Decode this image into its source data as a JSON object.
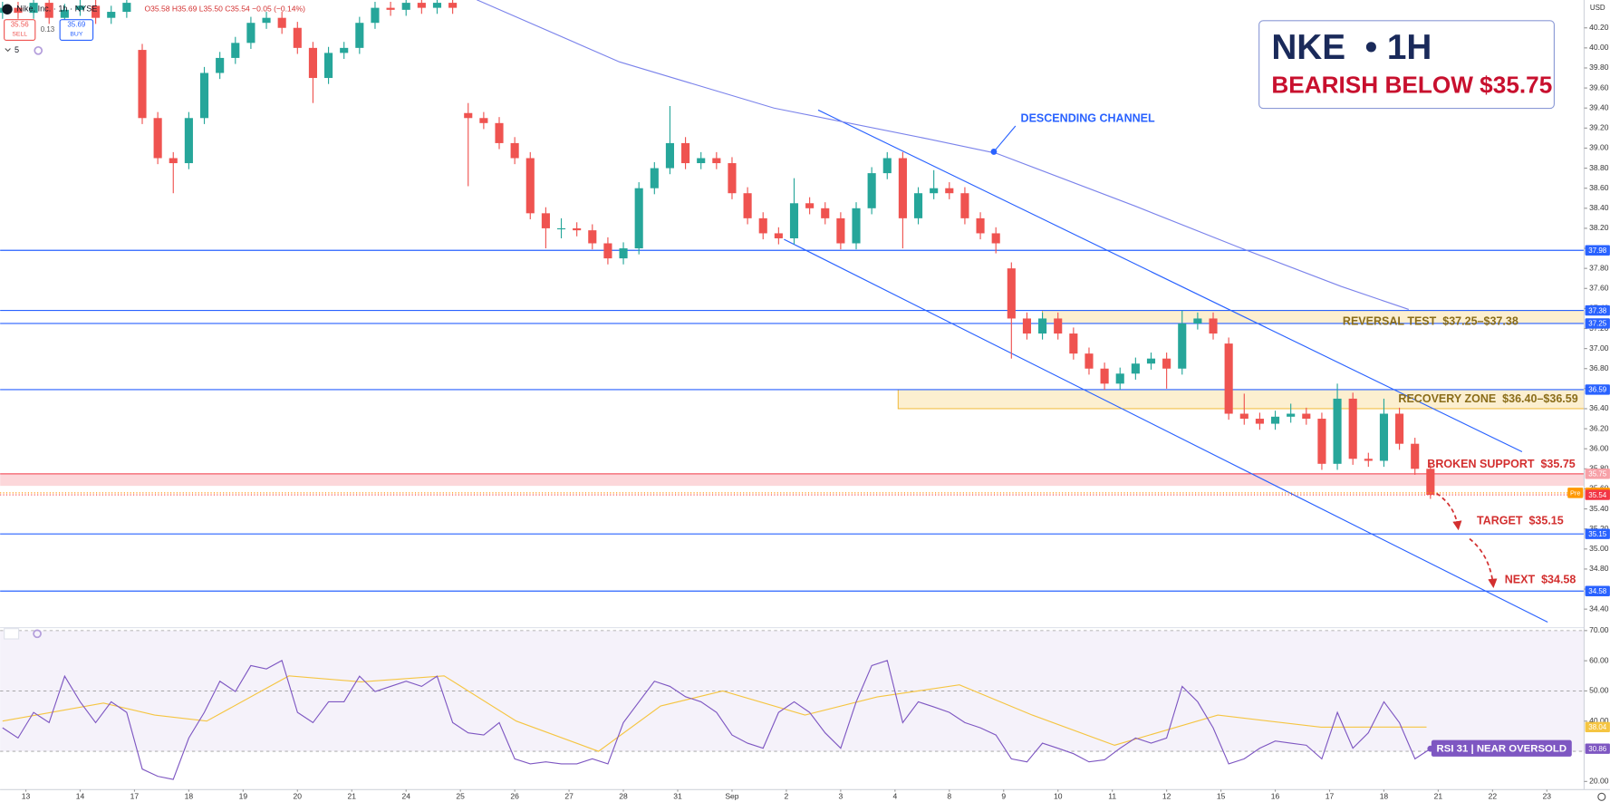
{
  "header": {
    "symbol": "Nike, Inc. · 1h · NYSE",
    "ohlc": "O35.58 H35.69 L35.50 C35.54 −0.05 (−0.14%)",
    "sell_price": "35.56",
    "sell": "SELL",
    "spread": "0.13",
    "buy_price": "35.69",
    "buy": "BUY",
    "indicators": "5",
    "currency": "USD"
  },
  "title_box": {
    "title": "NKE  • 1H",
    "subtitle": "BEARISH BELOW $35.75"
  },
  "chart_data": [
    {
      "type": "candlestick",
      "up_color": "#26a69a",
      "down_color": "#ef5350",
      "xlim": [
        -3.32,
        200.8
      ],
      "ylim": [
        34.216,
        40.478
      ],
      "yticks": [
        {
          "value": 34.4,
          "label": "34.40"
        },
        {
          "value": 34.6,
          "label": "34.60"
        },
        {
          "value": 34.8,
          "label": "34.80"
        },
        {
          "value": 35,
          "label": "35.00"
        },
        {
          "value": 35.2,
          "label": "35.20"
        },
        {
          "value": 35.4,
          "label": "35.40"
        },
        {
          "value": 35.6,
          "label": "35.60"
        },
        {
          "value": 35.8,
          "label": "35.80"
        },
        {
          "value": 36,
          "label": "36.00"
        },
        {
          "value": 36.2,
          "label": "36.20"
        },
        {
          "value": 36.4,
          "label": "36.40"
        },
        {
          "value": 36.6,
          "label": "36.60"
        },
        {
          "value": 36.8,
          "label": "36.80"
        },
        {
          "value": 37,
          "label": "37.00"
        },
        {
          "value": 37.2,
          "label": "37.20"
        },
        {
          "value": 37.4,
          "label": "37.40"
        },
        {
          "value": 37.6,
          "label": "37.60"
        },
        {
          "value": 37.8,
          "label": "37.80"
        },
        {
          "value": 38,
          "label": "38.00"
        },
        {
          "value": 38.2,
          "label": "38.20"
        },
        {
          "value": 38.4,
          "label": "38.40"
        },
        {
          "value": 38.6,
          "label": "38.60"
        },
        {
          "value": 38.8,
          "label": "38.80"
        },
        {
          "value": 39,
          "label": "39.00"
        },
        {
          "value": 39.2,
          "label": "39.20"
        },
        {
          "value": 39.4,
          "label": "39.40"
        },
        {
          "value": 39.6,
          "label": "39.60"
        },
        {
          "value": 39.8,
          "label": "39.80"
        },
        {
          "value": 40,
          "label": "40.00"
        },
        {
          "value": 40.2,
          "label": "40.20"
        }
      ],
      "x": [
        -3,
        -1,
        1,
        3,
        5,
        7,
        9,
        11,
        13,
        15,
        17,
        19,
        21,
        23,
        25,
        27,
        29,
        31,
        33,
        35,
        37,
        39,
        41,
        43,
        45,
        47,
        49,
        51,
        53,
        55,
        57,
        59,
        61,
        63,
        65,
        67,
        69,
        71,
        73,
        75,
        77,
        79,
        81,
        83,
        85,
        87,
        89,
        91,
        93,
        95,
        97,
        99,
        101,
        103,
        105,
        107,
        109,
        111,
        113,
        115,
        117,
        119,
        121,
        123,
        125,
        127,
        129,
        131,
        133,
        135,
        137,
        139,
        141,
        143,
        145,
        147,
        149,
        151,
        153,
        155,
        157,
        159,
        161,
        163,
        165,
        167,
        169,
        171,
        173,
        175,
        177,
        179,
        181
      ],
      "open": [
        40.35,
        40.4,
        40.35,
        40.45,
        40.3,
        40.38,
        40.42,
        40.3,
        40.36,
        39.98,
        39.3,
        38.9,
        38.85,
        39.3,
        39.75,
        39.9,
        40.05,
        40.25,
        40.3,
        40.2,
        40.0,
        39.7,
        39.95,
        40.0,
        40.25,
        40.4,
        40.38,
        40.45,
        40.4,
        40.45,
        39.35,
        39.3,
        39.25,
        39.05,
        38.9,
        38.35,
        38.2,
        38.2,
        38.18,
        38.05,
        37.9,
        38.0,
        38.6,
        38.8,
        39.05,
        38.85,
        38.9,
        38.85,
        38.55,
        38.3,
        38.15,
        38.1,
        38.45,
        38.4,
        38.3,
        38.05,
        38.4,
        38.75,
        38.9,
        38.3,
        38.55,
        38.6,
        38.55,
        38.3,
        38.15,
        37.8,
        37.3,
        37.15,
        37.3,
        37.15,
        36.95,
        36.8,
        36.65,
        36.75,
        36.85,
        36.9,
        36.8,
        37.25,
        37.3,
        37.05,
        36.35,
        36.3,
        36.25,
        36.32,
        36.35,
        36.3,
        35.85,
        36.5,
        35.9,
        35.88,
        36.35,
        36.05,
        35.8
      ],
      "high": [
        40.46,
        40.46,
        40.51,
        40.51,
        40.44,
        40.48,
        40.48,
        40.42,
        40.51,
        40.04,
        39.36,
        38.96,
        39.36,
        39.81,
        39.96,
        40.11,
        40.31,
        40.36,
        40.36,
        40.26,
        40.06,
        40.01,
        40.06,
        40.31,
        40.46,
        40.46,
        40.51,
        40.51,
        40.51,
        40.51,
        39.45,
        39.36,
        39.31,
        39.11,
        38.96,
        38.41,
        38.3,
        38.26,
        38.24,
        38.11,
        38.06,
        38.66,
        38.86,
        39.42,
        39.11,
        38.96,
        38.96,
        38.91,
        38.61,
        38.36,
        38.21,
        38.7,
        38.51,
        38.46,
        38.36,
        38.46,
        38.81,
        38.96,
        38.96,
        38.61,
        38.78,
        38.66,
        38.61,
        38.36,
        38.21,
        37.86,
        37.36,
        37.36,
        37.36,
        37.21,
        37.01,
        36.86,
        36.81,
        36.91,
        36.96,
        36.96,
        37.38,
        37.36,
        37.36,
        37.11,
        36.55,
        36.36,
        36.38,
        36.45,
        36.41,
        36.36,
        36.65,
        36.56,
        35.96,
        36.5,
        36.41,
        36.11,
        35.86
      ],
      "low": [
        40.29,
        40.29,
        40.29,
        40.24,
        40.24,
        40.32,
        40.24,
        40.24,
        40.3,
        39.24,
        38.84,
        38.55,
        38.79,
        39.24,
        39.69,
        39.84,
        39.99,
        40.19,
        40.14,
        39.94,
        39.45,
        39.64,
        39.89,
        39.94,
        40.19,
        40.32,
        40.32,
        40.34,
        40.34,
        40.34,
        38.62,
        39.19,
        38.99,
        38.84,
        38.29,
        38.0,
        38.1,
        38.12,
        37.99,
        37.84,
        37.84,
        37.94,
        38.54,
        38.74,
        38.79,
        38.79,
        38.79,
        38.49,
        38.24,
        38.09,
        38.04,
        38.04,
        38.34,
        38.24,
        37.99,
        37.99,
        38.34,
        38.69,
        38.0,
        38.24,
        38.49,
        38.49,
        38.24,
        38.09,
        37.95,
        36.9,
        37.09,
        37.09,
        37.09,
        36.89,
        36.74,
        36.59,
        36.59,
        36.69,
        36.79,
        36.6,
        36.74,
        37.19,
        37.09,
        36.29,
        36.24,
        36.19,
        36.19,
        36.26,
        36.24,
        35.79,
        35.79,
        35.84,
        35.82,
        35.82,
        35.99,
        35.74,
        35.5
      ],
      "close": [
        40.4,
        40.35,
        40.45,
        40.3,
        40.38,
        40.42,
        40.3,
        40.36,
        40.45,
        39.3,
        38.9,
        38.85,
        39.3,
        39.75,
        39.9,
        40.05,
        40.25,
        40.3,
        40.2,
        40.0,
        39.7,
        39.95,
        40.0,
        40.25,
        40.4,
        40.38,
        40.45,
        40.4,
        40.45,
        40.4,
        39.3,
        39.25,
        39.05,
        38.9,
        38.35,
        38.2,
        38.2,
        38.18,
        38.05,
        37.9,
        38.0,
        38.6,
        38.8,
        39.05,
        38.85,
        38.9,
        38.85,
        38.55,
        38.3,
        38.15,
        38.1,
        38.45,
        38.4,
        38.3,
        38.05,
        38.4,
        38.75,
        38.9,
        38.3,
        38.55,
        38.6,
        38.55,
        38.3,
        38.15,
        38.05,
        37.3,
        37.15,
        37.3,
        37.15,
        36.95,
        36.8,
        36.65,
        36.75,
        36.85,
        36.9,
        36.8,
        37.25,
        37.3,
        37.15,
        36.35,
        36.3,
        36.25,
        36.32,
        36.35,
        36.3,
        35.85,
        36.5,
        35.9,
        35.88,
        36.35,
        36.05,
        35.8,
        35.54
      ],
      "ma": {
        "color": "#7b83eb",
        "x": [
          58.1,
          76.5,
          96.4,
          116.4,
          125,
          143,
          156.3,
          169.5,
          178.2
        ],
        "values": [
          40.48,
          39.86,
          39.4,
          39.09,
          38.95,
          38.42,
          38.01,
          37.62,
          37.39
        ]
      },
      "channel": {
        "label": "DESCENDING CHANNEL",
        "color": "#2962ff",
        "upper": {
          "x": [
            102.1,
            192.8
          ],
          "y": [
            39.38,
            35.97
          ]
        },
        "lower": {
          "x": [
            97.7,
            196.1
          ],
          "y": [
            38.09,
            34.27
          ]
        }
      },
      "hlines": [
        37.98,
        37.38,
        37.25,
        36.59,
        35.15,
        34.58
      ],
      "hline_color": "#2962ff",
      "zones": [
        {
          "label": "REVERSAL TEST  $37.25–$37.38",
          "low": 37.25,
          "high": 37.38,
          "x_start": 131,
          "color": "#f0b429"
        },
        {
          "label": "RECOVERY ZONE  $36.40–$36.59",
          "low": 36.4,
          "high": 36.59,
          "x_start": 112.4,
          "color": "#f0b429"
        }
      ],
      "support": {
        "label": "BROKEN SUPPORT  $35.75",
        "high": 35.75,
        "low": 35.63,
        "color": "#f23645"
      },
      "last_price": 35.54,
      "last_color": "#f23645",
      "pre_price": 35.56,
      "pre_label": "Pre",
      "pre_color": "#ff9800",
      "annotations": [
        "TARGET  $35.15",
        "NEXT  $34.58"
      ]
    },
    {
      "type": "line",
      "xlim": [
        -3.32,
        200.8
      ],
      "ylim": [
        17.3,
        71
      ],
      "yticks": [
        {
          "value": 20,
          "label": "20.00"
        },
        {
          "value": 40,
          "label": "40.00"
        },
        {
          "value": 50,
          "label": "50.00"
        },
        {
          "value": 60,
          "label": "60.00"
        },
        {
          "value": 70,
          "label": "70.00"
        }
      ],
      "xticks": [
        {
          "value": 0,
          "label": "13"
        },
        {
          "value": 7,
          "label": "14"
        },
        {
          "value": 14,
          "label": "17"
        },
        {
          "value": 21,
          "label": "18"
        },
        {
          "value": 28,
          "label": "19"
        },
        {
          "value": 35,
          "label": "20"
        },
        {
          "value": 42,
          "label": "21"
        },
        {
          "value": 49,
          "label": "24"
        },
        {
          "value": 56,
          "label": "25"
        },
        {
          "value": 63,
          "label": "26"
        },
        {
          "value": 70,
          "label": "27"
        },
        {
          "value": 77,
          "label": "28"
        },
        {
          "value": 84,
          "label": "31"
        },
        {
          "value": 91,
          "label": "Sep"
        },
        {
          "value": 98,
          "label": "2"
        },
        {
          "value": 105,
          "label": "3"
        },
        {
          "value": 112,
          "label": "4"
        },
        {
          "value": 119,
          "label": "8"
        },
        {
          "value": 126,
          "label": "9"
        },
        {
          "value": 133,
          "label": "10"
        },
        {
          "value": 140,
          "label": "11"
        },
        {
          "value": 147,
          "label": "12"
        },
        {
          "value": 154,
          "label": "15"
        },
        {
          "value": 161,
          "label": "16"
        },
        {
          "value": 168,
          "label": "17"
        },
        {
          "value": 175,
          "label": "18"
        },
        {
          "value": 182,
          "label": "21"
        },
        {
          "value": 189,
          "label": "22"
        },
        {
          "value": 196,
          "label": "23"
        }
      ],
      "x": [
        -3,
        -1,
        1,
        3,
        5,
        7,
        9,
        11,
        13,
        15,
        17,
        19,
        21,
        23,
        25,
        27,
        29,
        31,
        33,
        35,
        37,
        39,
        41,
        43,
        45,
        47,
        49,
        51,
        53,
        55,
        57,
        59,
        61,
        63,
        65,
        67,
        69,
        71,
        73,
        75,
        77,
        79,
        81,
        83,
        85,
        87,
        89,
        91,
        93,
        95,
        97,
        99,
        101,
        103,
        105,
        107,
        109,
        111,
        113,
        115,
        117,
        119,
        121,
        123,
        125,
        127,
        129,
        131,
        133,
        135,
        137,
        139,
        141,
        143,
        145,
        147,
        149,
        151,
        153,
        155,
        157,
        159,
        161,
        163,
        165,
        167,
        169,
        171,
        173,
        175,
        177,
        179,
        181
      ],
      "rsi": {
        "color": "#7e57c2",
        "values": [
          37.8,
          34.4,
          42.9,
          39.5,
          54.9,
          46.4,
          39.5,
          46.4,
          42.9,
          24.1,
          21.7,
          20.7,
          34.4,
          42.9,
          53.2,
          49.8,
          58.4,
          57.3,
          60.1,
          42.9,
          39.5,
          46.4,
          46.4,
          54.9,
          49.8,
          51.5,
          53.2,
          51.5,
          54.9,
          39.5,
          36.1,
          35.4,
          39.5,
          27.5,
          25.8,
          26.5,
          25.8,
          25.8,
          27.5,
          25.8,
          39.5,
          46.4,
          53.2,
          51.5,
          48.1,
          46.4,
          42.9,
          35.4,
          32.7,
          31.0,
          42.9,
          46.4,
          42.9,
          36.1,
          31.0,
          46.4,
          58.4,
          60.1,
          39.5,
          46.4,
          44.7,
          42.9,
          39.5,
          37.8,
          35.4,
          27.5,
          26.5,
          32.7,
          31.0,
          29.2,
          26.5,
          27.2,
          31.0,
          34.4,
          32.7,
          34.4,
          51.5,
          46.4,
          37.8,
          25.8,
          27.5,
          31.0,
          33.4,
          32.7,
          32.0,
          27.5,
          42.9,
          31.0,
          36.1,
          46.4,
          39.5,
          27.5,
          30.86
        ]
      },
      "rsi_ma": {
        "color": "#f5c542",
        "x": [
          -3,
          10,
          16.6,
          23.3,
          33.9,
          43.2,
          53.9,
          63.2,
          73.8,
          81.8,
          89.8,
          100.4,
          109.7,
          120.3,
          129.7,
          140.3,
          153.6,
          166.9,
          180.5
        ],
        "values": [
          40,
          46,
          42,
          40,
          55,
          53,
          55,
          40,
          30,
          45,
          50,
          42,
          48,
          52,
          42,
          32,
          42,
          38,
          38.04
        ]
      },
      "levels": [
        30,
        50,
        70
      ],
      "band": [
        30,
        70
      ],
      "band_color": "#7e57c2",
      "annotation": "RSI 31 | NEAR OVERSOLD"
    }
  ]
}
